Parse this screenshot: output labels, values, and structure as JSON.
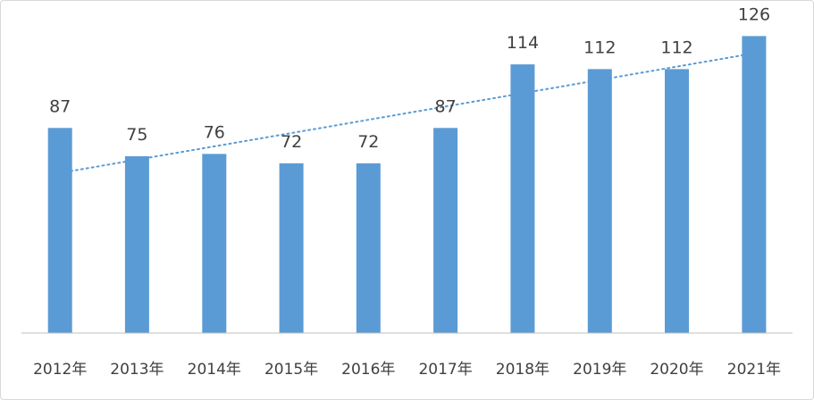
{
  "chart_data": {
    "type": "bar",
    "title": "",
    "xlabel": "",
    "ylabel": "",
    "categories": [
      "2012年",
      "2013年",
      "2014年",
      "2015年",
      "2016年",
      "2017年",
      "2018年",
      "2019年",
      "2020年",
      "2021年"
    ],
    "values": [
      87,
      75,
      76,
      72,
      72,
      87,
      114,
      112,
      112,
      126
    ],
    "ylim": [
      0,
      136
    ],
    "grid": false,
    "legend": "none",
    "data_labels": true,
    "trendline": "linear",
    "colors": {
      "bar": "#5b9bd5",
      "trendline": "#5b9bd5",
      "axis": "#bfbfbf",
      "text": "#404040"
    }
  }
}
